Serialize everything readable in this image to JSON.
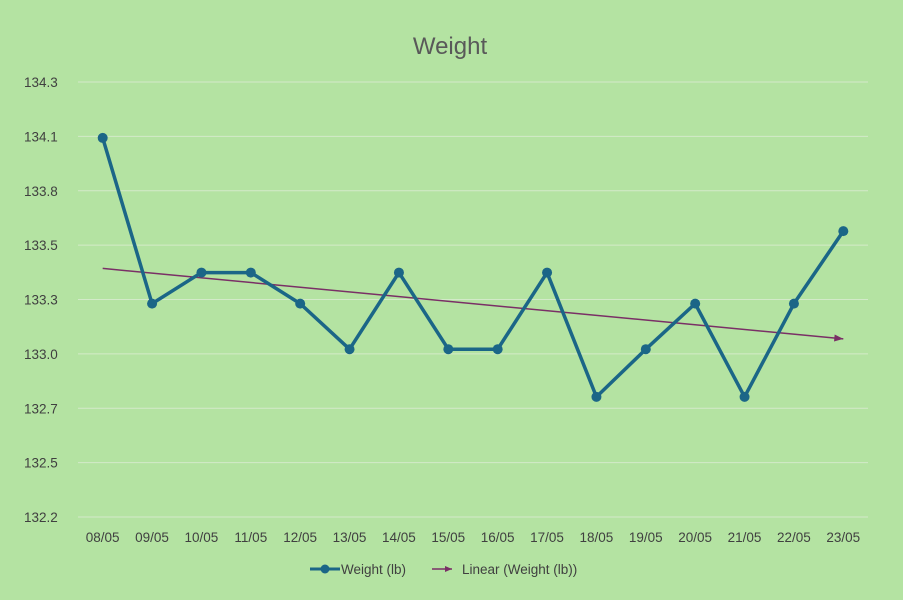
{
  "chart_data": {
    "type": "line",
    "title": "Weight",
    "xlabel": "",
    "ylabel": "",
    "categories": [
      "08/05",
      "09/05",
      "10/05",
      "11/05",
      "12/05",
      "13/05",
      "14/05",
      "15/05",
      "16/05",
      "17/05",
      "18/05",
      "19/05",
      "20/05",
      "21/05",
      "22/05",
      "23/05"
    ],
    "series": [
      {
        "name": "Weight (lb)",
        "values": [
          134.03,
          133.23,
          133.38,
          133.38,
          133.23,
          133.01,
          133.38,
          133.01,
          133.01,
          133.38,
          132.78,
          133.01,
          133.23,
          132.78,
          133.23,
          133.58
        ]
      }
    ],
    "trendline": {
      "name": "Linear (Weight (lb))",
      "type": "linear",
      "start_value": 133.4,
      "end_value": 133.06
    },
    "y_ticks": [
      "134.3",
      "134.1",
      "133.8",
      "133.5",
      "133.3",
      "133.0",
      "132.7",
      "132.5",
      "132.2"
    ],
    "ylim": [
      132.2,
      134.3
    ],
    "grid": true,
    "legend": "bottom",
    "colors": {
      "background": "#b4e3a2",
      "series": "#1b6687",
      "trendline": "#7a2f66",
      "gridline": "#d3eac9"
    }
  }
}
